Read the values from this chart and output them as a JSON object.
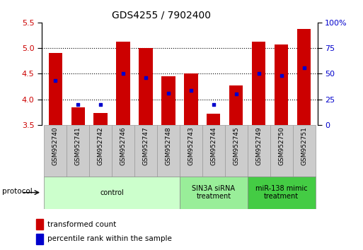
{
  "title": "GDS4255 / 7902400",
  "samples": [
    "GSM952740",
    "GSM952741",
    "GSM952742",
    "GSM952746",
    "GSM952747",
    "GSM952748",
    "GSM952743",
    "GSM952744",
    "GSM952745",
    "GSM952749",
    "GSM952750",
    "GSM952751"
  ],
  "bar_tops": [
    4.9,
    3.85,
    3.73,
    5.13,
    5.0,
    4.45,
    4.5,
    3.72,
    4.27,
    5.13,
    5.07,
    5.37
  ],
  "bar_bottom": 3.5,
  "percentile_values": [
    4.37,
    3.9,
    3.9,
    4.5,
    4.43,
    4.12,
    4.17,
    3.9,
    4.1,
    4.5,
    4.47,
    4.62
  ],
  "ylim_left": [
    3.5,
    5.5
  ],
  "ylim_right": [
    0,
    100
  ],
  "yticks_left": [
    3.5,
    4.0,
    4.5,
    5.0,
    5.5
  ],
  "yticks_right": [
    0,
    25,
    50,
    75,
    100
  ],
  "ytick_labels_right": [
    "0",
    "25",
    "50",
    "75",
    "100%"
  ],
  "bar_color": "#cc0000",
  "dot_color": "#0000cc",
  "grid_color": "#000000",
  "protocol_groups": [
    {
      "label": "control",
      "start": 0,
      "end": 5,
      "color": "#ccffcc"
    },
    {
      "label": "SIN3A siRNA\ntreatment",
      "start": 6,
      "end": 8,
      "color": "#99ee99"
    },
    {
      "label": "miR-138 mimic\ntreatment",
      "start": 9,
      "end": 11,
      "color": "#44cc44"
    }
  ],
  "protocol_label": "protocol",
  "legend_items": [
    {
      "label": "transformed count",
      "color": "#cc0000"
    },
    {
      "label": "percentile rank within the sample",
      "color": "#0000cc"
    }
  ],
  "bar_width": 0.6,
  "sample_label_fontsize": 6.5,
  "axis_label_color_left": "#cc0000",
  "axis_label_color_right": "#0000cc",
  "xlabelbox_color": "#cccccc",
  "xlabelbox_edge": "#999999"
}
